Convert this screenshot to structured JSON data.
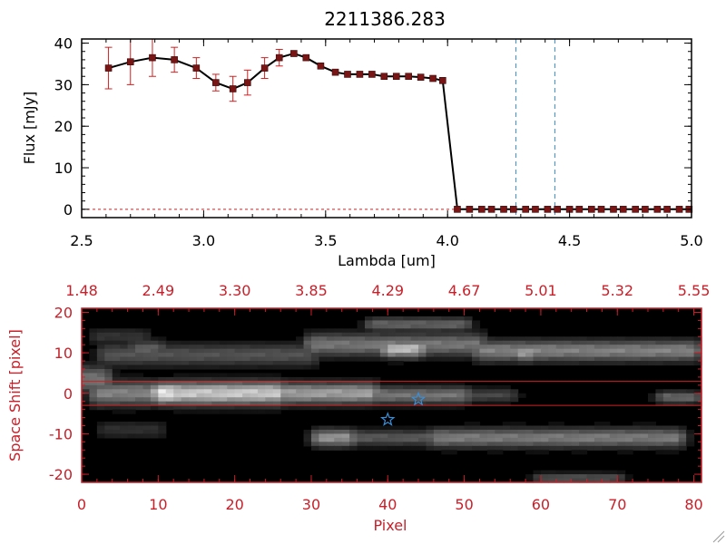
{
  "title": "2211386.283",
  "chart_data": [
    {
      "type": "line",
      "xlabel": "Lambda [um]",
      "ylabel": "Flux [mJy]",
      "xlim": [
        2.5,
        5.0
      ],
      "ylim": [
        -2,
        41
      ],
      "xticks": [
        "2.5",
        "3.0",
        "3.5",
        "4.0",
        "4.5",
        "5.0"
      ],
      "yticks": [
        "0",
        "10",
        "20",
        "30",
        "40"
      ],
      "x": [
        2.61,
        2.7,
        2.79,
        2.88,
        2.97,
        3.05,
        3.12,
        3.18,
        3.25,
        3.31,
        3.37,
        3.42,
        3.48,
        3.54,
        3.59,
        3.64,
        3.69,
        3.74,
        3.79,
        3.84,
        3.89,
        3.94,
        3.98,
        4.04,
        4.09,
        4.14,
        4.18,
        4.23,
        4.27,
        4.32,
        4.36,
        4.41,
        4.45,
        4.5,
        4.54,
        4.59,
        4.63,
        4.68,
        4.72,
        4.77,
        4.81,
        4.86,
        4.9,
        4.95,
        4.99
      ],
      "y": [
        34,
        35.5,
        36.5,
        36,
        34,
        30.5,
        29,
        30.5,
        34,
        36.5,
        37.5,
        36.5,
        34.5,
        33,
        32.5,
        32.5,
        32.5,
        32,
        32,
        32,
        31.8,
        31.5,
        31,
        0,
        0,
        0,
        0,
        0,
        0,
        0,
        0,
        0,
        0,
        0,
        0,
        0,
        0,
        0,
        0,
        0,
        0,
        0,
        0,
        0,
        0
      ],
      "errors": [
        5,
        5.5,
        4.5,
        3,
        2.5,
        2,
        3,
        3,
        2.5,
        2,
        0,
        0,
        0,
        0,
        0,
        0,
        0,
        0,
        0,
        0,
        0,
        0,
        0,
        0,
        0,
        0,
        0,
        0,
        0,
        0,
        0,
        0,
        0,
        0,
        0,
        0,
        0,
        0,
        0,
        0,
        0,
        0,
        0,
        0,
        0
      ],
      "vlines": [
        4.28,
        4.44
      ],
      "colors": {
        "line": "#000000",
        "marker": "#7a1515",
        "error": "#d02020",
        "vline": "#3a8fd8",
        "zero_line": "#d02020"
      }
    },
    {
      "type": "heatmap",
      "xlabel": "Pixel",
      "ylabel": "Space Shift [pixel]",
      "xlim": [
        0,
        81
      ],
      "ylim": [
        -22,
        21
      ],
      "xticks": [
        "0",
        "10",
        "20",
        "30",
        "40",
        "50",
        "60",
        "70",
        "80"
      ],
      "yticks": [
        "-20",
        "-10",
        "0",
        "10",
        "20"
      ],
      "top_ticks": [
        "1.48",
        "2.49",
        "3.30",
        "3.85",
        "4.29",
        "4.67",
        "5.01",
        "5.32",
        "5.55"
      ],
      "hlines": [
        3,
        -3
      ],
      "stars": [
        {
          "x": 44,
          "y": -1.5
        },
        {
          "x": 40,
          "y": -6.5
        }
      ],
      "blobs": [
        {
          "x0": 2,
          "x1": 8,
          "y": 14,
          "w": 1,
          "b": 0.22
        },
        {
          "x0": 7,
          "x1": 10,
          "y": 11,
          "w": 1,
          "b": 0.4
        },
        {
          "x0": 3,
          "x1": 30,
          "y": 9.5,
          "w": 1.3,
          "b": 0.35
        },
        {
          "x0": 0,
          "x1": 3,
          "y": 3.5,
          "w": 1.5,
          "b": 0.5
        },
        {
          "x0": 10,
          "x1": 12,
          "y": 0,
          "w": 1.2,
          "b": 1.0
        },
        {
          "x0": 12,
          "x1": 26,
          "y": 0,
          "w": 1.3,
          "b": 0.85
        },
        {
          "x0": 26,
          "x1": 38,
          "y": 0,
          "w": 1.2,
          "b": 0.68
        },
        {
          "x0": 38,
          "x1": 50,
          "y": -0.5,
          "w": 1,
          "b": 0.5
        },
        {
          "x0": 50,
          "x1": 56,
          "y": -0.5,
          "w": 0.8,
          "b": 0.3
        },
        {
          "x0": 2,
          "x1": 9,
          "y": 0,
          "w": 1.4,
          "b": 0.55
        },
        {
          "x0": 30,
          "x1": 52,
          "y": 12,
          "w": 1.3,
          "b": 0.5
        },
        {
          "x0": 40,
          "x1": 44,
          "y": 11,
          "w": 1,
          "b": 0.8
        },
        {
          "x0": 38,
          "x1": 50,
          "y": 17,
          "w": 0.8,
          "b": 0.42
        },
        {
          "x0": 52,
          "x1": 80,
          "y": 10.5,
          "w": 1.2,
          "b": 0.55
        },
        {
          "x0": 57,
          "x1": 59,
          "y": 10,
          "w": 1,
          "b": 0.65
        },
        {
          "x0": 31,
          "x1": 35,
          "y": -11,
          "w": 1,
          "b": 0.62
        },
        {
          "x0": 35,
          "x1": 46,
          "y": -11,
          "w": 0.9,
          "b": 0.38
        },
        {
          "x0": 46,
          "x1": 78,
          "y": -11,
          "w": 1.1,
          "b": 0.52
        },
        {
          "x0": 3,
          "x1": 10,
          "y": -9,
          "w": 1,
          "b": 0.2
        },
        {
          "x0": 60,
          "x1": 70,
          "y": -21,
          "w": 0.6,
          "b": 0.35
        },
        {
          "x0": 76,
          "x1": 80,
          "y": -1,
          "w": 0.7,
          "b": 0.45
        }
      ],
      "colors": {
        "frame": "#c8202a",
        "text": "#c8202a",
        "hline": "#d02020",
        "star": "#3a8fd8",
        "background": "#000000"
      }
    }
  ]
}
